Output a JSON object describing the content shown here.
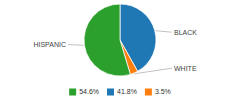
{
  "chart_data": {
    "type": "pie",
    "categories": [
      "BLACK",
      "WHITE",
      "HISPANIC"
    ],
    "values": [
      41.8,
      3.5,
      54.6
    ],
    "value_labels": [
      "41.8%",
      "3.5%",
      "54.6%"
    ],
    "legend": "bottom"
  }
}
